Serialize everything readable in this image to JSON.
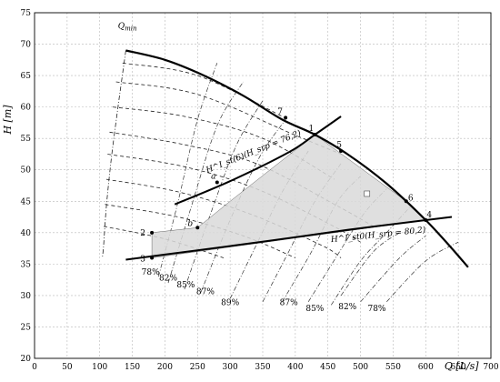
{
  "chart_data": {
    "type": "line",
    "xlabel": "Q [L/s]",
    "ylabel": "H [m]",
    "xlim": [
      0,
      700
    ],
    "ylim": [
      20,
      75
    ],
    "x_ticks": [
      0,
      50,
      100,
      150,
      200,
      250,
      300,
      350,
      400,
      450,
      500,
      550,
      600,
      650,
      700
    ],
    "y_ticks": [
      20,
      25,
      30,
      35,
      40,
      45,
      50,
      55,
      60,
      65,
      70,
      75
    ],
    "grid": "dashed",
    "max_head_curve": [
      [
        140,
        69
      ],
      [
        200,
        67.5
      ],
      [
        260,
        65
      ],
      [
        320,
        61.8
      ],
      [
        380,
        58
      ],
      [
        430,
        55.6
      ],
      [
        480,
        52.5
      ],
      [
        540,
        47.8
      ],
      [
        600,
        42
      ],
      [
        640,
        37.5
      ],
      [
        665,
        34.5
      ]
    ],
    "system_curve_upper": {
      "label": "H^I_st(6)(H_srp = 76,2)",
      "points": [
        [
          215,
          44.5
        ],
        [
          300,
          48.2
        ],
        [
          390,
          52.8
        ],
        [
          430,
          55.6
        ],
        [
          470,
          58.5
        ]
      ]
    },
    "system_curve_lower": {
      "label": "H^I_st0(H_srp = 80,2)",
      "points": [
        [
          140,
          35.7
        ],
        [
          250,
          37.2
        ],
        [
          360,
          38.7
        ],
        [
          470,
          40.3
        ],
        [
          600,
          42
        ],
        [
          640,
          42.5
        ]
      ]
    },
    "operating_region": [
      [
        180,
        40
      ],
      [
        250,
        40.8
      ],
      [
        300,
        45
      ],
      [
        430,
        55.6
      ],
      [
        570,
        45
      ],
      [
        600,
        42
      ],
      [
        180,
        36
      ]
    ],
    "points": [
      {
        "label": "1",
        "x": 430,
        "y": 55.6
      },
      {
        "label": "2",
        "x": 180,
        "y": 40
      },
      {
        "label": "3",
        "x": 180,
        "y": 36
      },
      {
        "label": "4",
        "x": 600,
        "y": 42
      },
      {
        "label": "5",
        "x": 470,
        "y": 53
      },
      {
        "label": "6",
        "x": 570,
        "y": 45
      },
      {
        "label": "7",
        "x": 385,
        "y": 58.3
      },
      {
        "label": "a",
        "x": 280,
        "y": 48
      },
      {
        "label": "b",
        "x": 250,
        "y": 40.8
      }
    ],
    "qmin_label": "Q_min",
    "efficiency_labels_left": [
      "78%",
      "82%",
      "85%",
      "87%",
      "89%"
    ],
    "efficiency_labels_right": [
      "87%",
      "85%",
      "82%",
      "78%"
    ]
  }
}
